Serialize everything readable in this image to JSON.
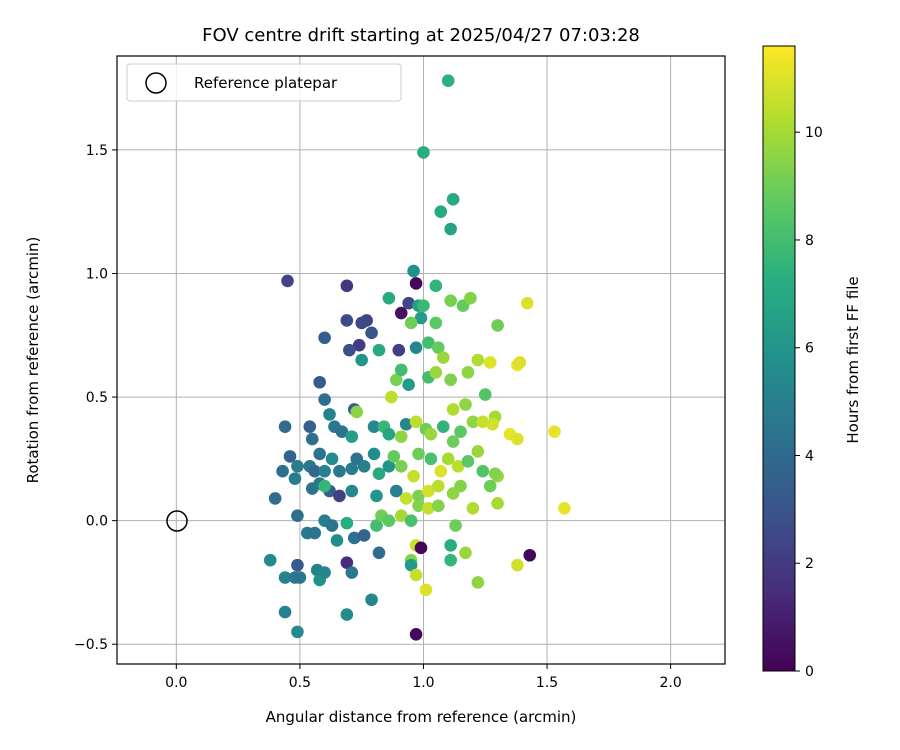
{
  "chart_data": {
    "type": "scatter",
    "title": "FOV centre drift starting at 2025/04/27 07:03:28",
    "xlabel": "Angular distance from reference (arcmin)",
    "ylabel": "Rotation from reference (arcmin)",
    "xlim": [
      -0.24,
      2.22
    ],
    "ylim": [
      -0.58,
      1.88
    ],
    "xticks": [
      0.0,
      0.5,
      1.0,
      1.5,
      2.0
    ],
    "xtick_labels": [
      "0.0",
      "0.5",
      "1.0",
      "1.5",
      "2.0"
    ],
    "yticks": [
      -0.5,
      0.0,
      0.5,
      1.0,
      1.5
    ],
    "ytick_labels": [
      "−0.5",
      "0.0",
      "0.5",
      "1.0",
      "1.5"
    ],
    "grid": true,
    "legend": {
      "placement": "top-left",
      "entries": [
        "Reference platepar"
      ]
    },
    "reference_point": {
      "x": 0.0,
      "y": 0.0,
      "marker": "open-circle"
    },
    "colorbar": {
      "label": "Hours from first FF file",
      "colormap": "viridis",
      "range": [
        0,
        11.6
      ],
      "ticks": [
        0,
        2,
        4,
        6,
        8,
        10
      ],
      "tick_labels": [
        "0",
        "2",
        "4",
        "6",
        "8",
        "10"
      ]
    },
    "points": [
      [
        1.1,
        1.78,
        7.3
      ],
      [
        1.0,
        1.49,
        7.2
      ],
      [
        1.12,
        1.3,
        7.0
      ],
      [
        1.07,
        1.25,
        7.0
      ],
      [
        1.11,
        1.18,
        6.8
      ],
      [
        0.45,
        0.97,
        2.4
      ],
      [
        0.69,
        0.95,
        1.8
      ],
      [
        0.96,
        1.01,
        5.8
      ],
      [
        0.97,
        0.96,
        0.2
      ],
      [
        0.86,
        0.9,
        7.0
      ],
      [
        1.05,
        0.95,
        7.5
      ],
      [
        0.94,
        0.88,
        2.5
      ],
      [
        0.98,
        0.87,
        6.5
      ],
      [
        1.0,
        0.87,
        7.8
      ],
      [
        1.11,
        0.89,
        9.2
      ],
      [
        1.16,
        0.87,
        8.8
      ],
      [
        1.19,
        0.9,
        9.4
      ],
      [
        1.42,
        0.88,
        11.0
      ],
      [
        0.69,
        0.81,
        2.6
      ],
      [
        0.77,
        0.81,
        2.4
      ],
      [
        0.75,
        0.8,
        2.5
      ],
      [
        0.91,
        0.84,
        0.6
      ],
      [
        0.99,
        0.82,
        6.3
      ],
      [
        1.05,
        0.8,
        8.6
      ],
      [
        0.95,
        0.8,
        9.0
      ],
      [
        1.3,
        0.79,
        9.0
      ],
      [
        0.79,
        0.76,
        3.1
      ],
      [
        0.6,
        0.74,
        3.5
      ],
      [
        0.74,
        0.71,
        2.0
      ],
      [
        0.7,
        0.69,
        2.8
      ],
      [
        0.75,
        0.65,
        6.0
      ],
      [
        0.82,
        0.69,
        7.0
      ],
      [
        0.9,
        0.69,
        2.2
      ],
      [
        0.97,
        0.7,
        5.3
      ],
      [
        1.02,
        0.72,
        8.0
      ],
      [
        1.06,
        0.7,
        8.8
      ],
      [
        1.08,
        0.66,
        9.8
      ],
      [
        1.22,
        0.65,
        10.2
      ],
      [
        1.27,
        0.64,
        11.0
      ],
      [
        1.38,
        0.63,
        11.2
      ],
      [
        1.39,
        0.64,
        11.0
      ],
      [
        0.58,
        0.56,
        3.3
      ],
      [
        0.6,
        0.49,
        4.1
      ],
      [
        0.89,
        0.57,
        9.2
      ],
      [
        0.91,
        0.61,
        8.0
      ],
      [
        0.94,
        0.55,
        6.3
      ],
      [
        1.02,
        0.58,
        8.0
      ],
      [
        1.05,
        0.6,
        9.8
      ],
      [
        1.11,
        0.57,
        9.3
      ],
      [
        1.18,
        0.6,
        9.6
      ],
      [
        1.25,
        0.51,
        8.4
      ],
      [
        1.17,
        0.47,
        9.6
      ],
      [
        1.29,
        0.42,
        10.0
      ],
      [
        1.12,
        0.45,
        10.2
      ],
      [
        0.87,
        0.5,
        10.4
      ],
      [
        0.62,
        0.43,
        5.1
      ],
      [
        0.72,
        0.45,
        3.4
      ],
      [
        0.73,
        0.44,
        9.5
      ],
      [
        0.64,
        0.38,
        4.6
      ],
      [
        0.54,
        0.38,
        3.5
      ],
      [
        0.44,
        0.38,
        4.1
      ],
      [
        0.67,
        0.36,
        4.4
      ],
      [
        0.71,
        0.34,
        6.4
      ],
      [
        0.8,
        0.38,
        5.4
      ],
      [
        0.84,
        0.38,
        7.7
      ],
      [
        0.86,
        0.35,
        6.8
      ],
      [
        0.91,
        0.34,
        9.6
      ],
      [
        0.93,
        0.39,
        5.3
      ],
      [
        0.97,
        0.4,
        10.4
      ],
      [
        1.01,
        0.37,
        9.0
      ],
      [
        1.03,
        0.35,
        9.8
      ],
      [
        1.08,
        0.38,
        7.5
      ],
      [
        1.12,
        0.32,
        9.0
      ],
      [
        1.15,
        0.36,
        8.6
      ],
      [
        1.2,
        0.4,
        9.6
      ],
      [
        1.24,
        0.4,
        10.6
      ],
      [
        1.28,
        0.39,
        10.8
      ],
      [
        1.35,
        0.35,
        11.2
      ],
      [
        1.38,
        0.33,
        11.0
      ],
      [
        1.53,
        0.36,
        11.2
      ],
      [
        0.55,
        0.33,
        4.2
      ],
      [
        0.58,
        0.27,
        4.4
      ],
      [
        0.54,
        0.22,
        4.6
      ],
      [
        0.46,
        0.26,
        3.7
      ],
      [
        0.49,
        0.22,
        4.8
      ],
      [
        0.43,
        0.2,
        4.2
      ],
      [
        0.56,
        0.2,
        3.9
      ],
      [
        0.6,
        0.2,
        5.0
      ],
      [
        0.63,
        0.25,
        5.5
      ],
      [
        0.66,
        0.2,
        4.7
      ],
      [
        0.71,
        0.21,
        4.8
      ],
      [
        0.73,
        0.25,
        4.4
      ],
      [
        0.76,
        0.22,
        5.0
      ],
      [
        0.8,
        0.27,
        5.6
      ],
      [
        0.82,
        0.19,
        7.0
      ],
      [
        0.86,
        0.22,
        6.0
      ],
      [
        0.88,
        0.26,
        8.8
      ],
      [
        0.91,
        0.22,
        9.2
      ],
      [
        0.96,
        0.18,
        10.6
      ],
      [
        0.98,
        0.27,
        9.0
      ],
      [
        1.03,
        0.25,
        8.2
      ],
      [
        1.07,
        0.2,
        11.0
      ],
      [
        1.1,
        0.25,
        10.0
      ],
      [
        1.14,
        0.22,
        10.4
      ],
      [
        1.18,
        0.24,
        8.6
      ],
      [
        1.22,
        0.28,
        9.8
      ],
      [
        1.24,
        0.2,
        8.4
      ],
      [
        1.3,
        0.18,
        9.8
      ],
      [
        1.29,
        0.19,
        9.4
      ],
      [
        0.48,
        0.17,
        4.8
      ],
      [
        0.55,
        0.13,
        4.4
      ],
      [
        0.58,
        0.15,
        4.6
      ],
      [
        0.62,
        0.12,
        3.4
      ],
      [
        0.66,
        0.1,
        2.2
      ],
      [
        0.71,
        0.12,
        5.4
      ],
      [
        0.6,
        0.14,
        7.6
      ],
      [
        0.81,
        0.1,
        6.0
      ],
      [
        0.89,
        0.12,
        5.0
      ],
      [
        0.93,
        0.09,
        10.6
      ],
      [
        0.98,
        0.1,
        9.2
      ],
      [
        1.02,
        0.12,
        10.8
      ],
      [
        1.06,
        0.14,
        10.4
      ],
      [
        1.12,
        0.11,
        9.6
      ],
      [
        1.15,
        0.14,
        9.4
      ],
      [
        1.2,
        0.05,
        10.2
      ],
      [
        1.27,
        0.14,
        9.0
      ],
      [
        1.3,
        0.07,
        10.0
      ],
      [
        1.57,
        0.05,
        11.2
      ],
      [
        0.4,
        0.09,
        4.1
      ],
      [
        0.49,
        0.02,
        4.2
      ],
      [
        0.53,
        -0.05,
        4.6
      ],
      [
        0.56,
        -0.05,
        4.4
      ],
      [
        0.6,
        -0.0,
        5.0
      ],
      [
        0.63,
        -0.02,
        4.5
      ],
      [
        0.65,
        -0.08,
        5.6
      ],
      [
        0.69,
        -0.01,
        7.2
      ],
      [
        0.72,
        -0.07,
        4.3
      ],
      [
        0.76,
        -0.06,
        3.7
      ],
      [
        0.81,
        -0.02,
        8.0
      ],
      [
        0.83,
        0.02,
        9.0
      ],
      [
        0.86,
        0.0,
        8.6
      ],
      [
        0.91,
        0.02,
        10.0
      ],
      [
        0.95,
        -0.0,
        8.2
      ],
      [
        0.98,
        0.06,
        9.4
      ],
      [
        1.02,
        0.05,
        10.6
      ],
      [
        1.06,
        0.06,
        9.4
      ],
      [
        1.11,
        -0.1,
        7.2
      ],
      [
        1.13,
        -0.02,
        9.0
      ],
      [
        1.17,
        -0.13,
        9.8
      ],
      [
        0.38,
        -0.16,
        5.5
      ],
      [
        0.49,
        -0.18,
        3.3
      ],
      [
        0.44,
        -0.23,
        5.1
      ],
      [
        0.48,
        -0.23,
        4.7
      ],
      [
        0.5,
        -0.23,
        4.4
      ],
      [
        0.57,
        -0.2,
        5.0
      ],
      [
        0.58,
        -0.24,
        5.8
      ],
      [
        0.6,
        -0.21,
        5.3
      ],
      [
        0.69,
        -0.17,
        1.5
      ],
      [
        0.71,
        -0.21,
        4.6
      ],
      [
        0.82,
        -0.13,
        4.1
      ],
      [
        0.95,
        -0.16,
        9.4
      ],
      [
        0.97,
        -0.1,
        10.6
      ],
      [
        0.99,
        -0.11,
        0.2
      ],
      [
        0.95,
        -0.18,
        6.3
      ],
      [
        0.97,
        -0.22,
        10.6
      ],
      [
        1.01,
        -0.28,
        11.0
      ],
      [
        1.11,
        -0.16,
        7.6
      ],
      [
        1.22,
        -0.25,
        9.6
      ],
      [
        1.38,
        -0.18,
        10.8
      ],
      [
        1.43,
        -0.14,
        0.2
      ],
      [
        0.44,
        -0.37,
        5.0
      ],
      [
        0.49,
        -0.45,
        5.5
      ],
      [
        0.69,
        -0.38,
        5.5
      ],
      [
        0.79,
        -0.32,
        5.3
      ],
      [
        0.97,
        -0.46,
        0.2
      ]
    ]
  }
}
